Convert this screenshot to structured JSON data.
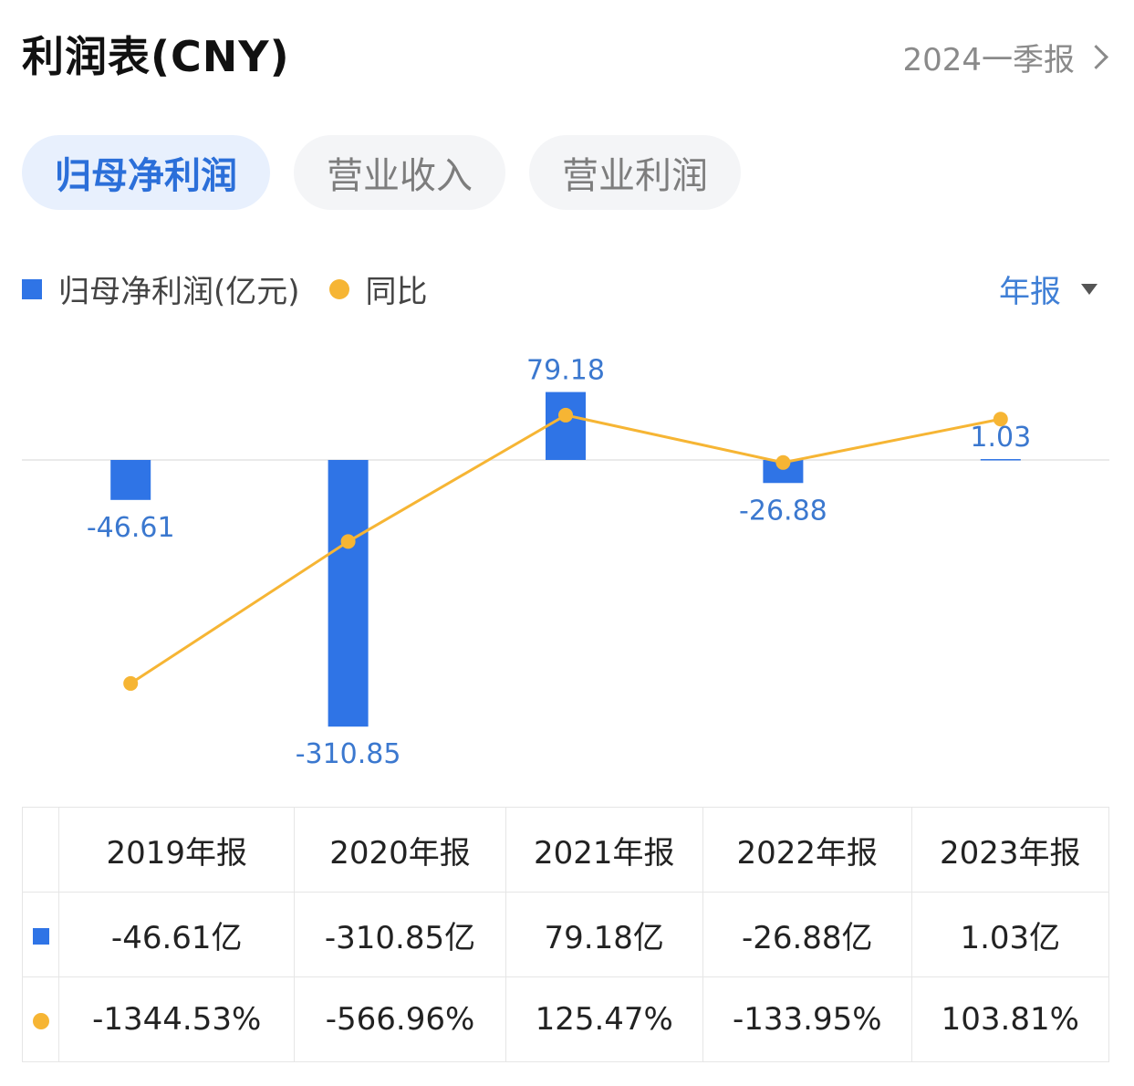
{
  "header": {
    "title": "利润表(CNY)",
    "period": "2024一季报"
  },
  "tabs": [
    {
      "label": "归母净利润",
      "active": true
    },
    {
      "label": "营业收入",
      "active": false
    },
    {
      "label": "营业利润",
      "active": false
    }
  ],
  "legend": {
    "bar": "归母净利润(亿元)",
    "dot": "同比"
  },
  "frequency": "年报",
  "colors": {
    "bar": "#2f74e6",
    "line": "#f6b534",
    "positive": "#d8483b",
    "negative": "#2f9a5f"
  },
  "chart_data": {
    "type": "bar",
    "categories": [
      "2019年报",
      "2020年报",
      "2021年报",
      "2022年报",
      "2023年报"
    ],
    "series": [
      {
        "name": "归母净利润(亿元)",
        "type": "bar",
        "values": [
          -46.61,
          -310.85,
          79.18,
          -26.88,
          1.03
        ],
        "labels": [
          "-46.61",
          "-310.85",
          "79.18",
          "-26.88",
          "1.03"
        ]
      },
      {
        "name": "同比",
        "type": "line",
        "values": [
          -1344.53,
          -566.96,
          125.47,
          -133.95,
          103.81
        ]
      }
    ]
  },
  "table": {
    "headers": [
      "2019年报",
      "2020年报",
      "2021年报",
      "2022年报",
      "2023年报"
    ],
    "profit_row": [
      "-46.61亿",
      "-310.85亿",
      "79.18亿",
      "-26.88亿",
      "1.03亿"
    ],
    "yoy_row": [
      "-1344.53%",
      "-566.96%",
      "125.47%",
      "-133.95%",
      "103.81%"
    ]
  }
}
